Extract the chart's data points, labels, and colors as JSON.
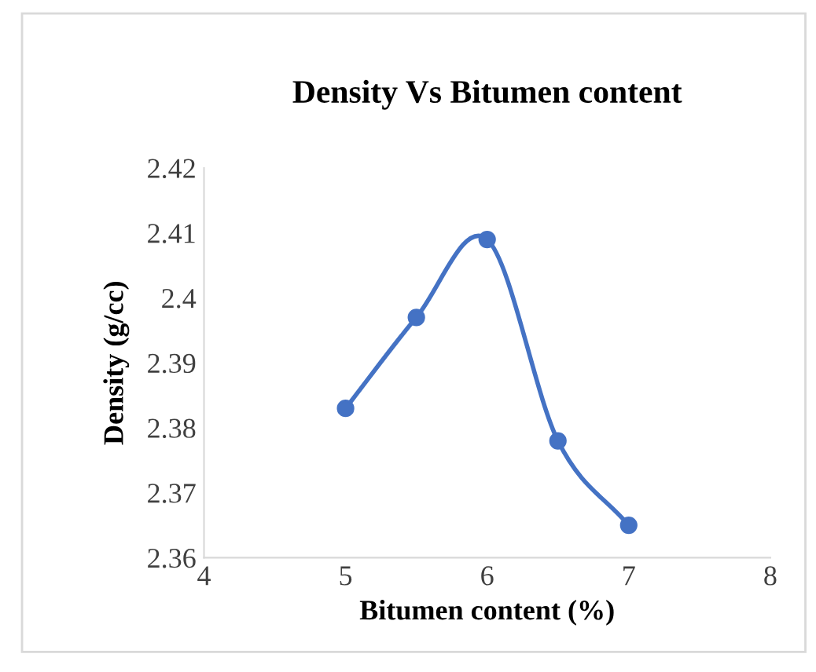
{
  "chart_data": {
    "type": "line",
    "title": "Density Vs Bitumen content",
    "xlabel": "Bitumen content (%)",
    "ylabel": "Density (g/cc)",
    "x": [
      5,
      5.5,
      6,
      6.5,
      7
    ],
    "series": [
      {
        "color": "#4472c4",
        "values": [
          2.383,
          2.397,
          2.409,
          2.378,
          2.365
        ]
      }
    ],
    "xlim": [
      4,
      8
    ],
    "xticks": [
      4,
      5,
      6,
      7,
      8
    ],
    "ylim": [
      2.36,
      2.42
    ],
    "yticks": [
      2.36,
      2.37,
      2.38,
      2.39,
      {
        "value": 2.4,
        "label": "2.4"
      },
      2.41,
      2.42
    ],
    "marker": "circle",
    "line_style": "solid",
    "grid": false,
    "legend": false
  }
}
